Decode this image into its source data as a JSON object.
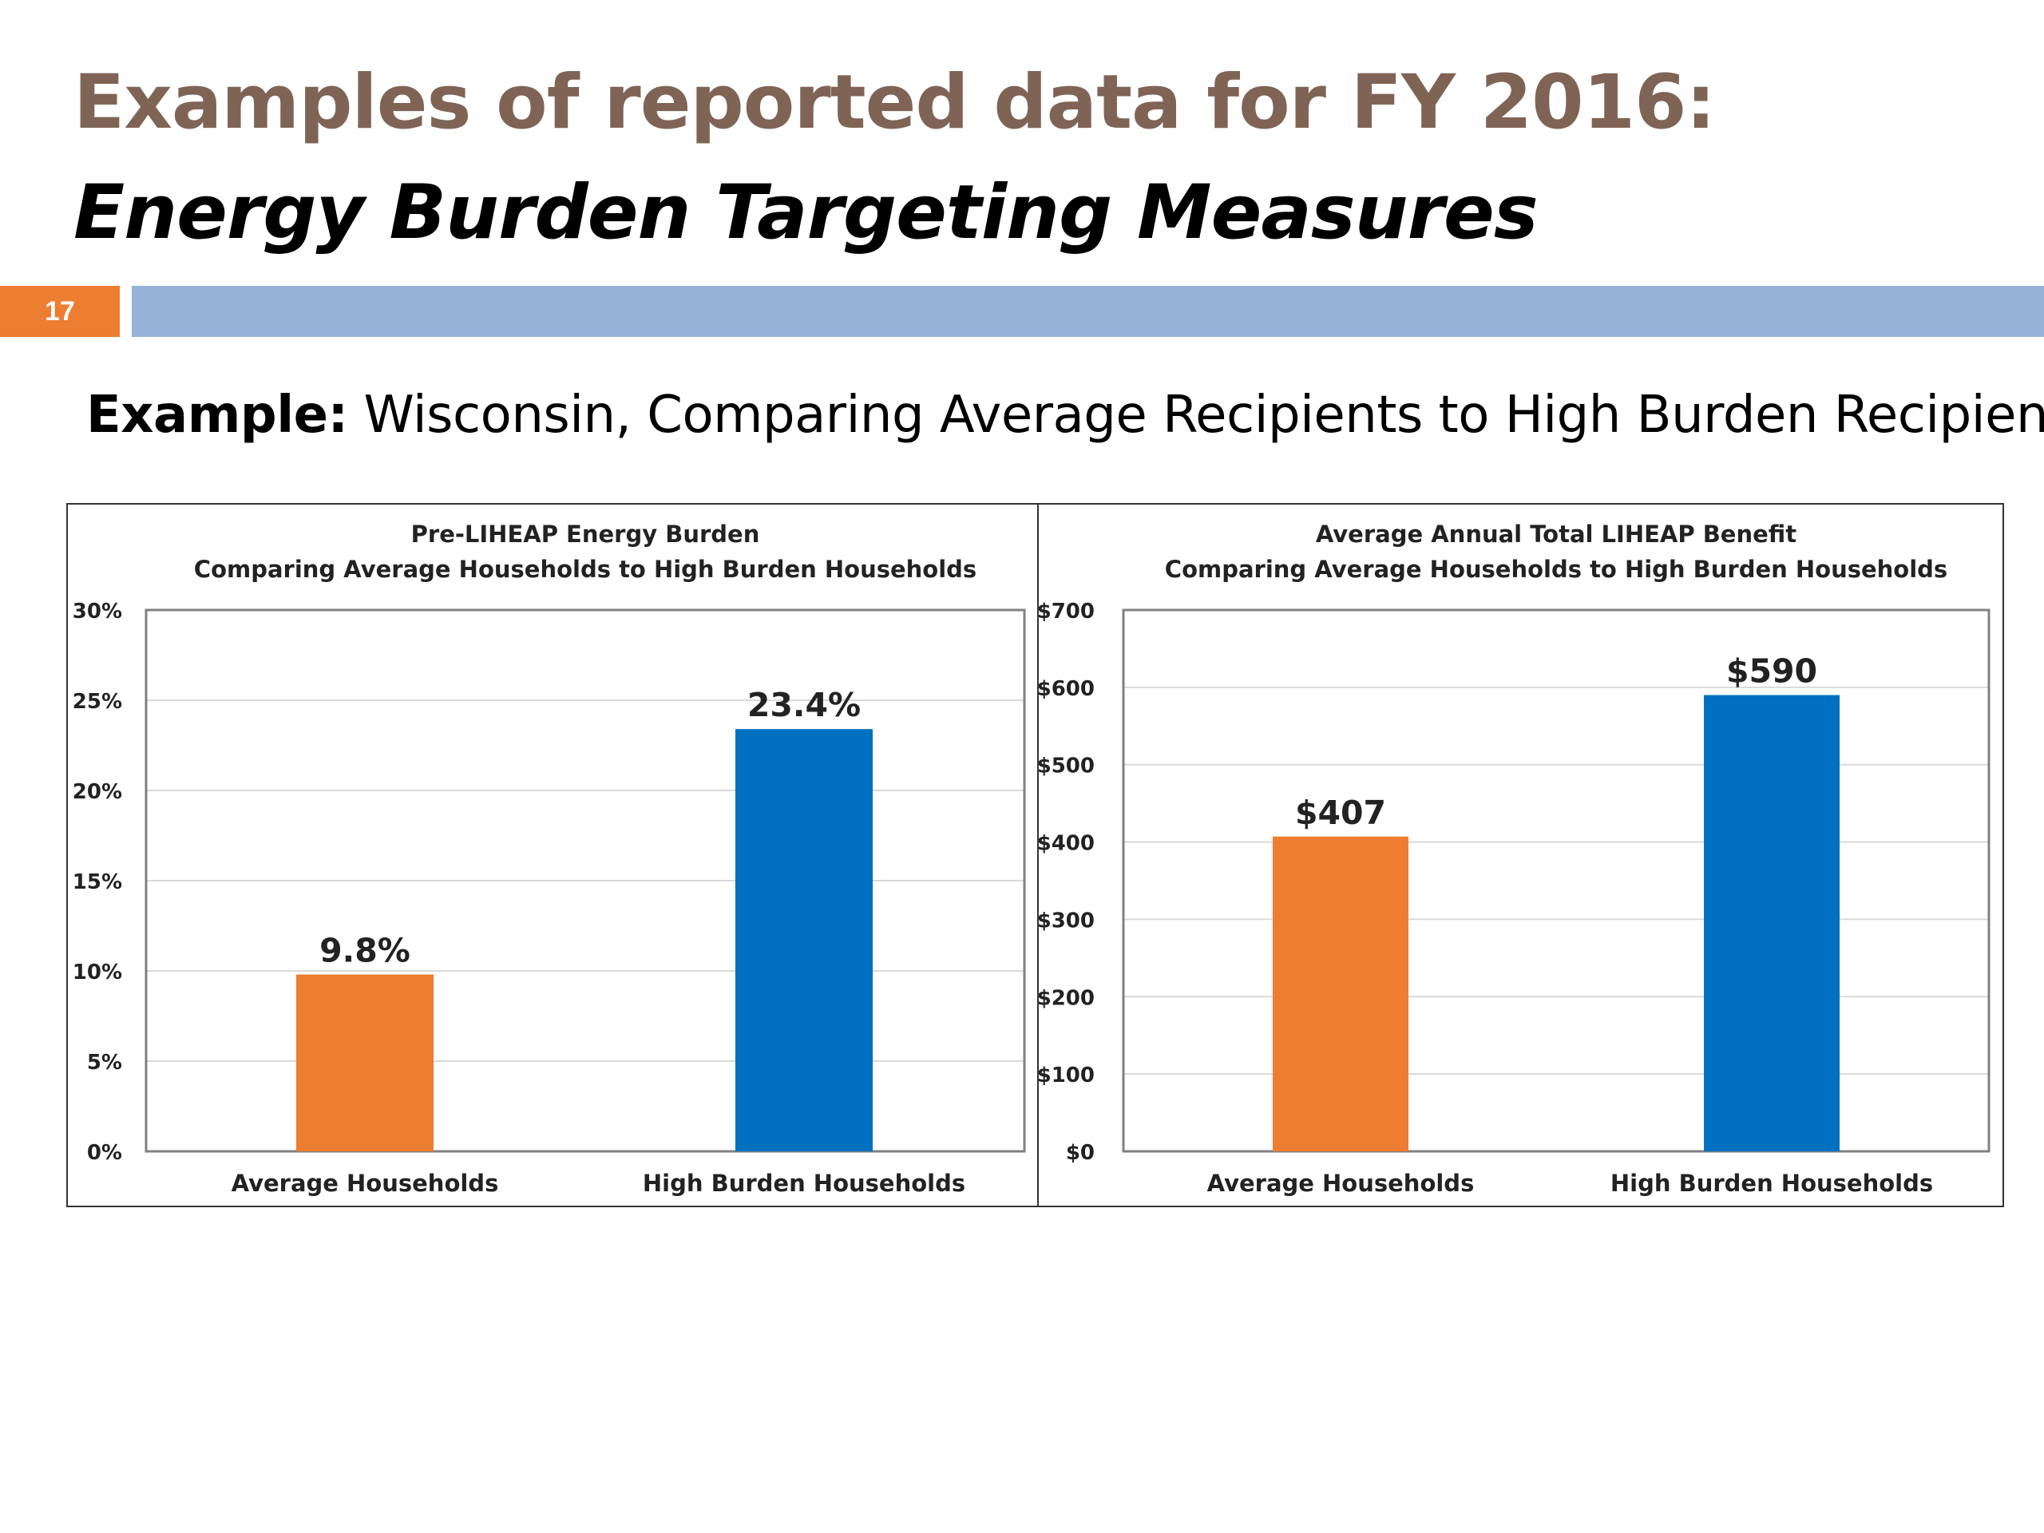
{
  "slide": {
    "title": "Examples of reported data for FY 2016:",
    "subtitle": "Energy Burden Targeting Measures",
    "number": "17",
    "example_label": "Example:",
    "example_text": " Wisconsin, Comparing Average Recipients to High Burden Recipients"
  },
  "colors": {
    "title": "#7f6455",
    "subtitle": "#000000",
    "accent_orange": "#ed7d31",
    "accent_blue_bar": "#95b3d7",
    "bar_orange": "#ed7d31",
    "bar_blue": "#0070c0",
    "gridline": "#d9d9d9"
  },
  "chart_data": [
    {
      "type": "bar",
      "title": "Pre-LIHEAP Energy Burden",
      "subtitle": "Comparing Average Households to High Burden Households",
      "categories": [
        "Average Households",
        "High Burden Households"
      ],
      "values": [
        9.8,
        23.4
      ],
      "data_labels": [
        "9.8%",
        "23.4%"
      ],
      "bar_colors": [
        "#ed7d31",
        "#0070c0"
      ],
      "yticks": [
        0,
        5,
        10,
        15,
        20,
        25,
        30
      ],
      "ytick_labels": [
        "0%",
        "5%",
        "10%",
        "15%",
        "20%",
        "25%",
        "30%"
      ],
      "ylim": [
        0,
        30
      ],
      "grid": true,
      "legend": false
    },
    {
      "type": "bar",
      "title": "Average Annual Total LIHEAP Benefit",
      "subtitle": "Comparing Average Households to High Burden Households",
      "categories": [
        "Average Households",
        "High Burden Households"
      ],
      "values": [
        407,
        590
      ],
      "data_labels": [
        "$407",
        "$590"
      ],
      "bar_colors": [
        "#ed7d31",
        "#0070c0"
      ],
      "yticks": [
        0,
        100,
        200,
        300,
        400,
        500,
        600,
        700
      ],
      "ytick_labels": [
        "$0",
        "$100",
        "$200",
        "$300",
        "$400",
        "$500",
        "$600",
        "$700"
      ],
      "ylim": [
        0,
        700
      ],
      "grid": true,
      "legend": false
    }
  ]
}
